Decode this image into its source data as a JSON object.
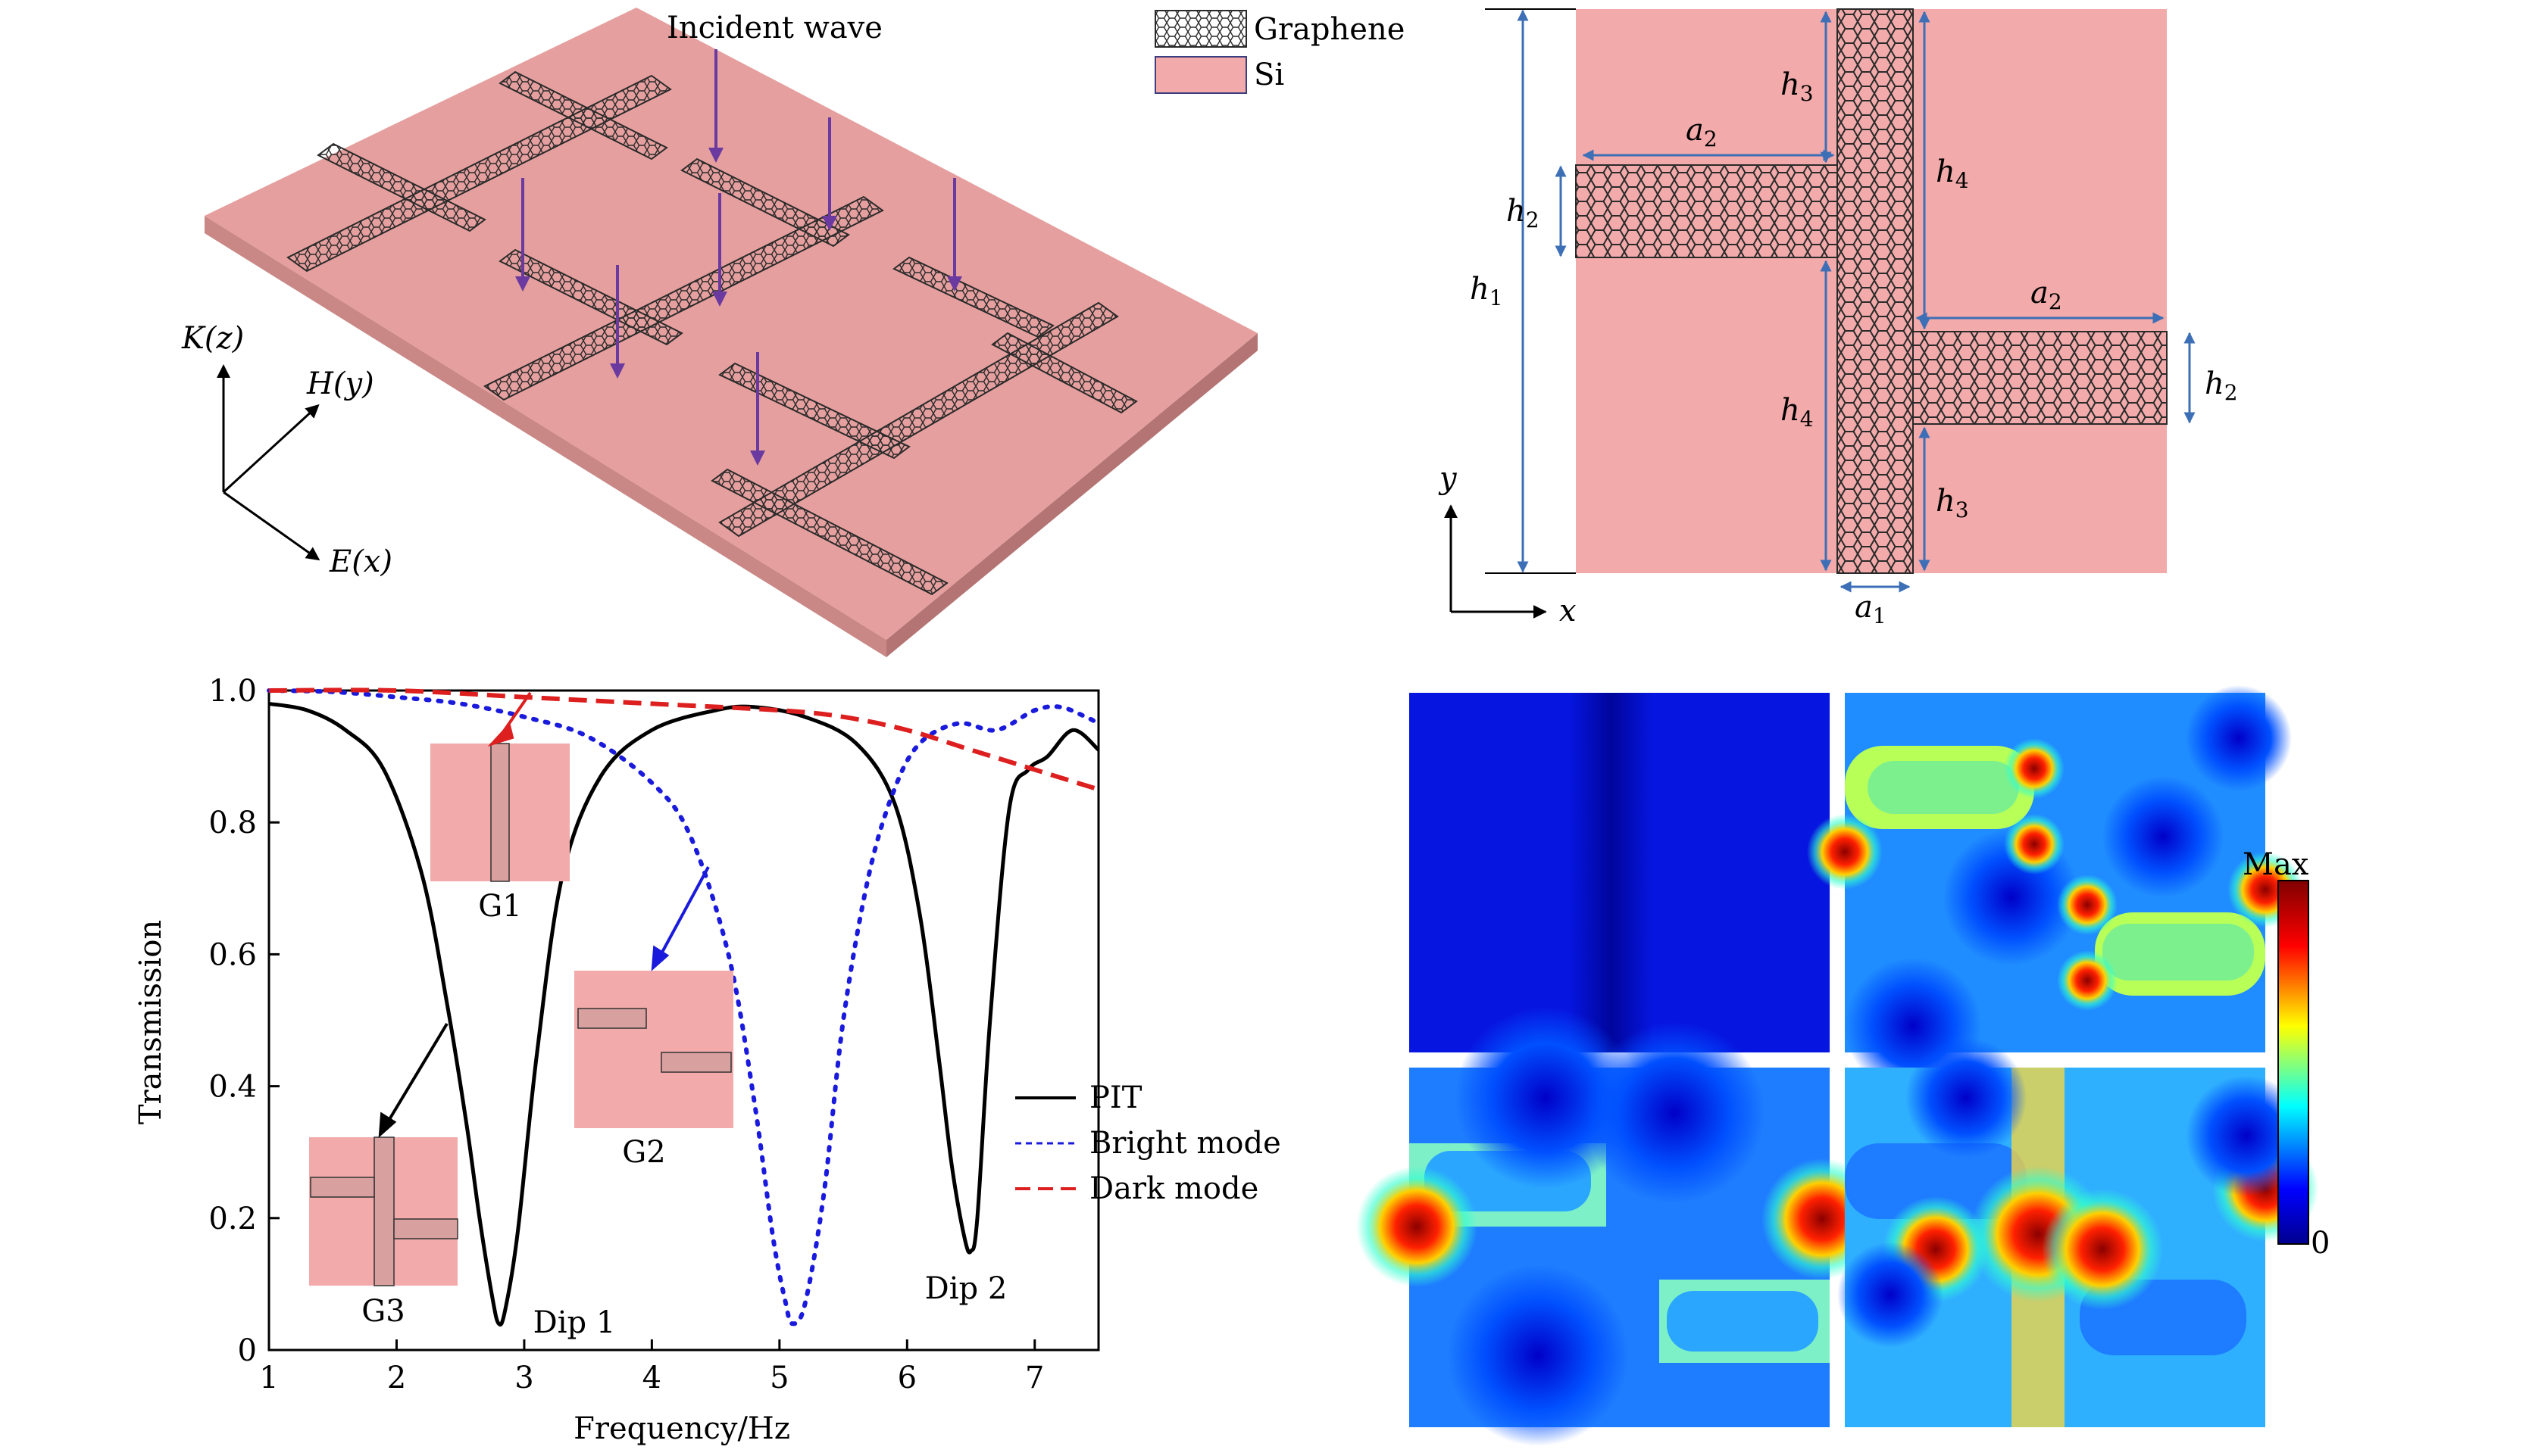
{
  "fig_a": {
    "incident_label": "Incident wave",
    "legend_graphene": "Graphene",
    "legend_si": "Si",
    "axis_k": "K(z)",
    "axis_h": "H(y)",
    "axis_e": "E(x)",
    "colors": {
      "substrate_top": "#e8a1a0",
      "substrate_side": "#c98886",
      "arrow": "#6a3aa0",
      "graphene_stroke": "#2a2a2a"
    }
  },
  "fig_b": {
    "labels": {
      "h1": "h1",
      "h2": "h2",
      "h3": "h3",
      "h4": "h4",
      "a1": "a1",
      "a2": "a2",
      "x": "x",
      "y": "y"
    },
    "colors": {
      "background": "#f2aaaa",
      "dim": "#3d6fb6"
    }
  },
  "chart_data": {
    "type": "line",
    "xlabel": "Frequency/Hz",
    "ylabel": "Transmission",
    "xlim": [
      1,
      7.5
    ],
    "ylim": [
      0,
      1.0
    ],
    "xticks": [
      "1",
      "2",
      "3",
      "4",
      "5",
      "6",
      "7"
    ],
    "yticks": [
      "0",
      "0.2",
      "0.4",
      "0.6",
      "0.8",
      "1.0"
    ],
    "legend_position": "right",
    "series": [
      {
        "name": "PIT",
        "style": "solid",
        "color": "#000000",
        "x": [
          1.0,
          1.3,
          1.6,
          1.9,
          2.2,
          2.4,
          2.55,
          2.65,
          2.75,
          2.8,
          2.85,
          2.95,
          3.1,
          3.3,
          3.6,
          4.0,
          4.5,
          4.8,
          5.2,
          5.6,
          5.9,
          6.1,
          6.25,
          6.35,
          6.45,
          6.5,
          6.55,
          6.65,
          6.8,
          6.95,
          7.1,
          7.3,
          7.5
        ],
        "y": [
          0.98,
          0.97,
          0.94,
          0.88,
          0.72,
          0.52,
          0.34,
          0.2,
          0.08,
          0.04,
          0.06,
          0.18,
          0.45,
          0.72,
          0.87,
          0.94,
          0.97,
          0.975,
          0.96,
          0.92,
          0.83,
          0.66,
          0.44,
          0.28,
          0.17,
          0.15,
          0.2,
          0.5,
          0.82,
          0.88,
          0.9,
          0.94,
          0.91
        ]
      },
      {
        "name": "Bright mode",
        "style": "dotted",
        "color": "#1a1adc",
        "x": [
          1.0,
          1.5,
          2.0,
          2.5,
          3.0,
          3.5,
          4.0,
          4.3,
          4.6,
          4.8,
          4.95,
          5.05,
          5.1,
          5.2,
          5.35,
          5.5,
          5.7,
          5.9,
          6.1,
          6.4,
          6.7,
          7.0,
          7.2,
          7.4,
          7.5
        ],
        "y": [
          1.0,
          0.998,
          0.99,
          0.98,
          0.96,
          0.93,
          0.86,
          0.78,
          0.6,
          0.38,
          0.17,
          0.07,
          0.04,
          0.07,
          0.24,
          0.5,
          0.72,
          0.85,
          0.92,
          0.95,
          0.94,
          0.97,
          0.975,
          0.96,
          0.95
        ]
      },
      {
        "name": "Dark mode",
        "style": "dashed",
        "color": "#dd1f1f",
        "x": [
          1.0,
          2.0,
          3.0,
          4.0,
          5.0,
          5.5,
          6.0,
          6.5,
          7.0,
          7.5
        ],
        "y": [
          1.0,
          1.0,
          0.99,
          0.98,
          0.97,
          0.96,
          0.94,
          0.91,
          0.88,
          0.85
        ]
      }
    ],
    "annotations": {
      "dip1": "Dip 1",
      "dip2": "Dip 2",
      "g1": "G1",
      "g2": "G2",
      "g3": "G3"
    }
  },
  "fig_d": {
    "colorbar_max": "Max",
    "colorbar_min": "0"
  }
}
